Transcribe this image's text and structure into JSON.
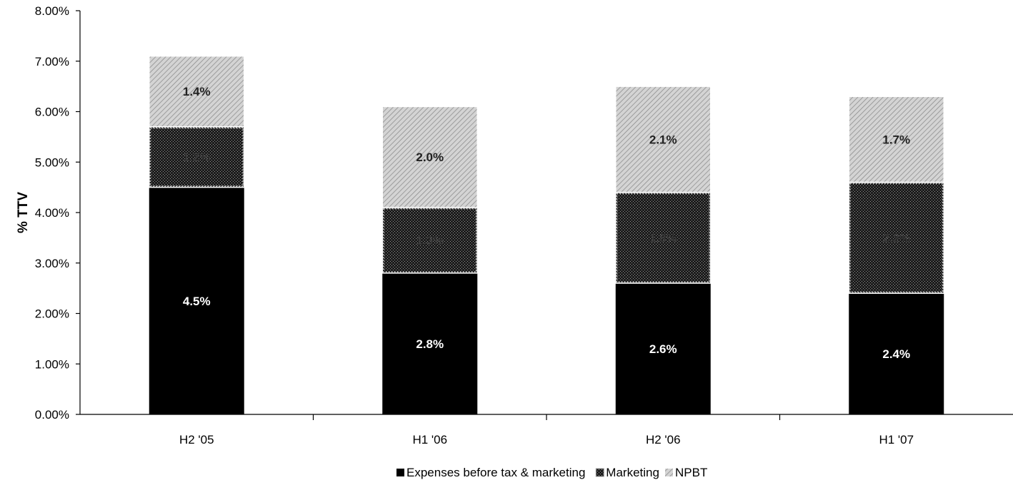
{
  "chart_data": {
    "type": "bar",
    "stacked": true,
    "categories": [
      "H2 '05",
      "H1 '06",
      "H2 '06",
      "H1 '07"
    ],
    "series": [
      {
        "name": "Expenses before tax & marketing",
        "values": [
          4.5,
          2.8,
          2.6,
          2.4
        ],
        "labels": [
          "4.5%",
          "2.8%",
          "2.6%",
          "2.4%"
        ],
        "color": "#000000"
      },
      {
        "name": "Marketing",
        "values": [
          1.2,
          1.3,
          1.8,
          2.2
        ],
        "labels": [
          "1.2%",
          "1.3%",
          "1.8%",
          "2.2%"
        ],
        "color": "#2b2b2b"
      },
      {
        "name": "NPBT",
        "values": [
          1.4,
          2.0,
          2.1,
          1.7
        ],
        "labels": [
          "1.4%",
          "2.0%",
          "2.1%",
          "1.7%"
        ],
        "color": "#c8c8c8"
      }
    ],
    "ylabel": "% TTV",
    "xlabel": "",
    "ylim": [
      0,
      8
    ],
    "yticks": [
      "0.00%",
      "1.00%",
      "2.00%",
      "3.00%",
      "4.00%",
      "5.00%",
      "6.00%",
      "7.00%",
      "8.00%"
    ],
    "grid": false,
    "legend_position": "bottom"
  }
}
